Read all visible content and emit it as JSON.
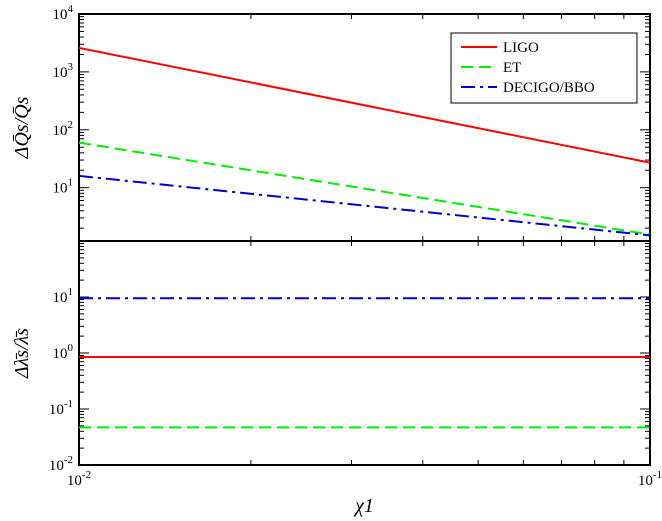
{
  "chart_data": [
    {
      "panel": "top",
      "type": "line",
      "log_x": true,
      "log_y": true,
      "xlim": [
        0.01,
        0.1
      ],
      "ylim": [
        1.2,
        10000
      ],
      "ylabel": "ΔQ̄s/Q̄s",
      "y_ticks": [
        {
          "value": 10,
          "base": "10",
          "exp": "1"
        },
        {
          "value": 100,
          "base": "10",
          "exp": "2"
        },
        {
          "value": 1000,
          "base": "10",
          "exp": "3"
        },
        {
          "value": 10000,
          "base": "10",
          "exp": "4"
        }
      ],
      "legend": {
        "position": "top-right"
      },
      "series": [
        {
          "name": "LIGO",
          "color": "#ff0000",
          "dash": "solid",
          "x": [
            0.01,
            0.1
          ],
          "y": [
            2600,
            27
          ]
        },
        {
          "name": "ET",
          "color": "#00ee00",
          "dash": "dash",
          "x": [
            0.01,
            0.1
          ],
          "y": [
            60,
            1.55
          ]
        },
        {
          "name": "DECIGO/BBO",
          "color": "#0000cc",
          "dash": "dashdot",
          "x": [
            0.01,
            0.1
          ],
          "y": [
            16,
            1.5
          ]
        }
      ]
    },
    {
      "panel": "bottom",
      "type": "line",
      "log_x": true,
      "log_y": true,
      "xlim": [
        0.01,
        0.1
      ],
      "ylim": [
        0.01,
        100
      ],
      "xlabel": "χ1",
      "ylabel": "Δλ̄s/λ̄s",
      "x_ticks": [
        {
          "value": 0.01,
          "base": "10",
          "exp": "-2"
        },
        {
          "value": 0.1,
          "base": "10",
          "exp": "-1"
        }
      ],
      "y_ticks": [
        {
          "value": 0.01,
          "base": "10",
          "exp": "-2"
        },
        {
          "value": 0.1,
          "base": "10",
          "exp": "-1"
        },
        {
          "value": 1,
          "base": "10",
          "exp": "0"
        },
        {
          "value": 10,
          "base": "10",
          "exp": "1"
        }
      ],
      "series": [
        {
          "name": "LIGO",
          "color": "#ff0000",
          "dash": "solid",
          "x": [
            0.01,
            0.1
          ],
          "y": [
            0.85,
            0.85
          ]
        },
        {
          "name": "ET",
          "color": "#00ee00",
          "dash": "dash",
          "x": [
            0.01,
            0.1
          ],
          "y": [
            0.047,
            0.047
          ]
        },
        {
          "name": "DECIGO/BBO",
          "color": "#0000cc",
          "dash": "dashdot",
          "x": [
            0.01,
            0.1
          ],
          "y": [
            9.5,
            9.5
          ]
        }
      ]
    }
  ]
}
